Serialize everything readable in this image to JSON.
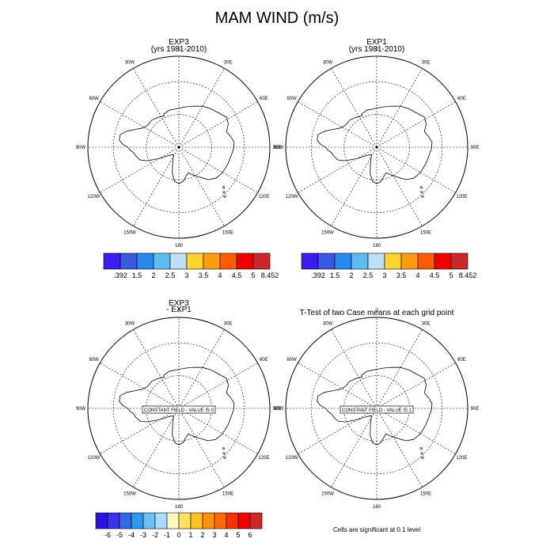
{
  "title": "MAM WIND (m/s)",
  "projection": "polar stereographic",
  "longitude_labels": [
    "0",
    "30E",
    "60E",
    "90E",
    "120E",
    "150E",
    "180",
    "150W",
    "120W",
    "90W",
    "60W",
    "30W"
  ],
  "panels": [
    {
      "title": "EXP3",
      "subtitle": "(yrs 1981-2010)",
      "note": ""
    },
    {
      "title": "EXP1",
      "subtitle": "(yrs 1981-2010)",
      "note": ""
    },
    {
      "title": "EXP3",
      "subtitle": "- EXP1",
      "note": "CONSTANT FIELD - VALUE IS 0"
    },
    {
      "title": "T-Test of two Case means at each grid point",
      "subtitle": "",
      "note": "CONSTANT FIELD - VALUE IS 1"
    }
  ],
  "colorbars": [
    {
      "labels": [
        ".392",
        "1.5",
        "2",
        "2.5",
        "3",
        "3.5",
        "4",
        "4.5",
        "5",
        "8.452"
      ],
      "colors": [
        "#3a1cf0",
        "#3858e0",
        "#2888ee",
        "#5cbcf0",
        "#bde0f6",
        "#ffd431",
        "#ff9c10",
        "#ff5c00",
        "#ee0000",
        "#c8282a"
      ]
    },
    {
      "labels": [
        ".392",
        "1.5",
        "2",
        "2.5",
        "3",
        "3.5",
        "4",
        "4.5",
        "5",
        "8.452"
      ],
      "colors": [
        "#3a1cf0",
        "#3858e0",
        "#2888ee",
        "#5cbcf0",
        "#bde0f6",
        "#ffd431",
        "#ff9c10",
        "#ff5c00",
        "#ee0000",
        "#c8282a"
      ]
    },
    {
      "labels": [
        "-6",
        "-5",
        "-4",
        "-3",
        "-2",
        "-1",
        "0",
        "1",
        "2",
        "3",
        "4",
        "5",
        "6"
      ],
      "colors": [
        "#2c10e0",
        "#3a32ee",
        "#3466e8",
        "#3098f0",
        "#6cc0f6",
        "#aadcf8",
        "#fefabe",
        "#ffe060",
        "#ffc020",
        "#ff9010",
        "#ff6a00",
        "#ff3000",
        "#ee0000",
        "#cc2a2a"
      ]
    }
  ],
  "bottom_note": "Cells are significant at 0.1 level"
}
